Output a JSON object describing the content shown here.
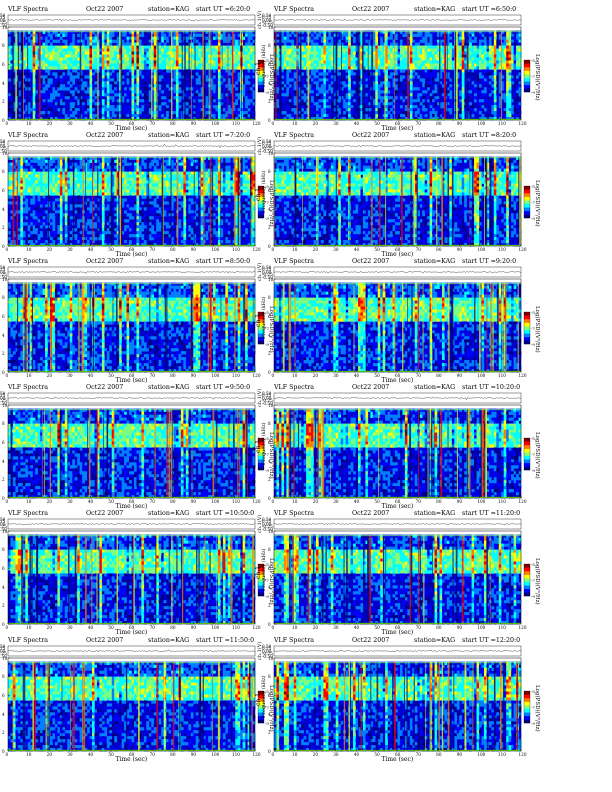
{
  "chart_data": {
    "type": "heatmap",
    "common": {
      "title": "VLF Spectra",
      "date": "Oct22 2007",
      "station": "station=KAG",
      "start_prefix": "start  UT =",
      "top_ylabel": "ch.1(V)",
      "top_ylim": [
        -0.5,
        0.5
      ],
      "top_yticks": [
        "0.50",
        "0.25",
        "0.00",
        "-0.25",
        "-0.50"
      ],
      "ylabel": "Frequency  (kHz)",
      "channel_label": "ch.1",
      "xlabel": "Time  (sec)",
      "xlim": [
        0,
        120
      ],
      "xticks": [
        "0",
        "10",
        "20",
        "30",
        "40",
        "50",
        "60",
        "70",
        "80",
        "90",
        "100",
        "110",
        "120"
      ],
      "ylim": [
        0,
        10
      ],
      "yticks": [
        "0",
        "2",
        "4",
        "6",
        "8",
        "10"
      ],
      "colorbar_label": "Log(PSD)(V²/Hz)",
      "colorbar_ticks": [
        "-5",
        "-7",
        "-9"
      ],
      "colorscale": [
        "#00007f",
        "#0000ff",
        "#007fff",
        "#00ffff",
        "#7fff7f",
        "#ffff00",
        "#ff7f00",
        "#ff0000",
        "#7f0000"
      ],
      "grid": false
    },
    "panels": [
      {
        "start": "6:20:0",
        "column": "left",
        "row": 1
      },
      {
        "start": "6:50:0",
        "column": "right",
        "row": 1
      },
      {
        "start": "7:20:0",
        "column": "left",
        "row": 2
      },
      {
        "start": "8:20:0",
        "column": "right",
        "row": 2
      },
      {
        "start": "8:50:0",
        "column": "left",
        "row": 3
      },
      {
        "start": "9:20:0",
        "column": "right",
        "row": 3
      },
      {
        "start": "9:50:0",
        "column": "left",
        "row": 4
      },
      {
        "start": "10:20:0",
        "column": "right",
        "row": 4
      },
      {
        "start": "10:50:0",
        "column": "left",
        "row": 5
      },
      {
        "start": "11:20:0",
        "column": "right",
        "row": 5
      },
      {
        "start": "11:50:0",
        "column": "left",
        "row": 6
      },
      {
        "start": "12:20:0",
        "column": "right",
        "row": 6
      }
    ]
  }
}
